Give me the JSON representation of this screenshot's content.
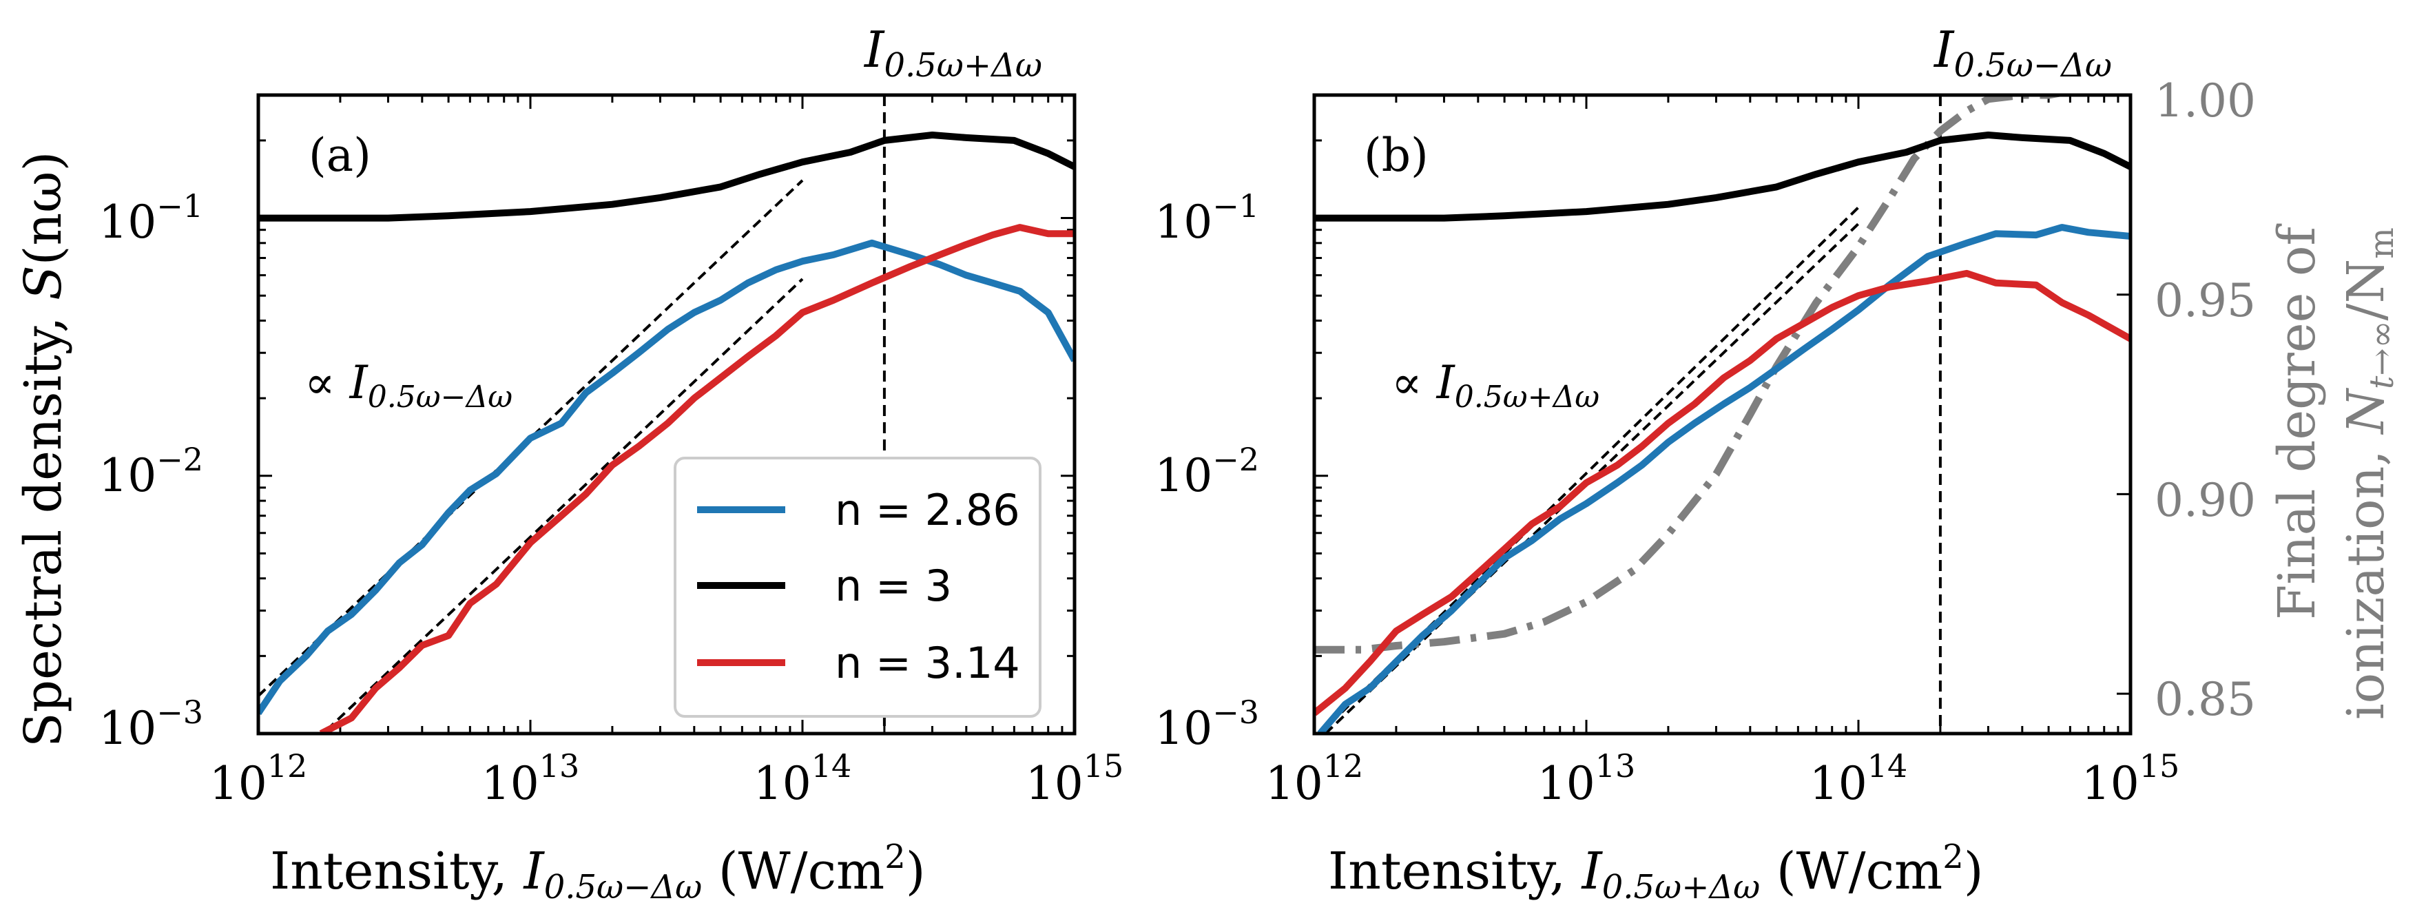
{
  "chart_data": [
    {
      "type": "line",
      "panel_label": "(a)",
      "xscale": "log",
      "yscale": "log",
      "xlim": [
        1000000000000.0,
        1000000000000000.0
      ],
      "ylim": [
        0.001,
        0.3
      ],
      "x_ticks": [
        "10",
        "10",
        "10",
        "10"
      ],
      "x_tick_exponents": [
        "12",
        "13",
        "14",
        "15"
      ],
      "y_ticks": [
        "10",
        "10",
        "10"
      ],
      "y_tick_exponents": [
        "−3",
        "−2",
        "−1"
      ],
      "xlabel": {
        "prefix": "Intensity, ",
        "var": "I",
        "sub": "0.5ω−Δω",
        "unit_open": " (W/cm",
        "unit_sup": "2",
        "unit_close": ")"
      },
      "ylabel": {
        "prefix": "Spectral density, ",
        "var": "S",
        "arg": "(nω)"
      },
      "top_annotation": {
        "var": "I",
        "sub": "0.5ω+Δω"
      },
      "vline_x": 200000000000000.0,
      "scaling_note": {
        "prefix": "∝ ",
        "var": "I",
        "sub": "0.5ω−Δω"
      },
      "reference_lines": [
        {
          "x": [
            1000000000000.0,
            100000000000000.0
          ],
          "y": [
            0.0014,
            0.14
          ]
        },
        {
          "x": [
            1350000000000.0,
            100000000000000.0
          ],
          "y": [
            0.00078,
            0.058
          ]
        }
      ],
      "series": [
        {
          "name": "n = 2.86",
          "color": "#1f77b4",
          "x": [
            1000000000000.0,
            1200000000000.0,
            1500000000000.0,
            1800000000000.0,
            2200000000000.0,
            2700000000000.0,
            3300000000000.0,
            4000000000000.0,
            5000000000000.0,
            6000000000000.0,
            7500000000000.0,
            10000000000000.0,
            13000000000000.0,
            16000000000000.0,
            20000000000000.0,
            25000000000000.0,
            32000000000000.0,
            40000000000000.0,
            50000000000000.0,
            63000000000000.0,
            80000000000000.0,
            100000000000000.0,
            130000000000000.0,
            180000000000000.0,
            250000000000000.0,
            320000000000000.0,
            400000000000000.0,
            500000000000000.0,
            630000000000000.0,
            800000000000000.0,
            1000000000000000.0
          ],
          "y": [
            0.0012,
            0.0016,
            0.002,
            0.0025,
            0.0029,
            0.0036,
            0.0046,
            0.0054,
            0.0072,
            0.0088,
            0.0102,
            0.014,
            0.016,
            0.021,
            0.025,
            0.03,
            0.037,
            0.043,
            0.048,
            0.056,
            0.063,
            0.068,
            0.072,
            0.08,
            0.072,
            0.066,
            0.06,
            0.056,
            0.052,
            0.043,
            0.028
          ]
        },
        {
          "name": "n = 3",
          "color": "#000000",
          "x": [
            1000000000000.0,
            1500000000000.0,
            2000000000000.0,
            3000000000000.0,
            5000000000000.0,
            7000000000000.0,
            10000000000000.0,
            20000000000000.0,
            30000000000000.0,
            50000000000000.0,
            70000000000000.0,
            100000000000000.0,
            150000000000000.0,
            200000000000000.0,
            300000000000000.0,
            400000000000000.0,
            600000000000000.0,
            800000000000000.0,
            1000000000000000.0
          ],
          "y": [
            0.1,
            0.1,
            0.1,
            0.1,
            0.102,
            0.104,
            0.106,
            0.113,
            0.12,
            0.132,
            0.148,
            0.165,
            0.18,
            0.2,
            0.21,
            0.205,
            0.2,
            0.178,
            0.158
          ]
        },
        {
          "name": "n = 3.14",
          "color": "#d62728",
          "x": [
            1700000000000.0,
            2200000000000.0,
            2700000000000.0,
            3300000000000.0,
            4000000000000.0,
            5000000000000.0,
            6000000000000.0,
            7500000000000.0,
            10000000000000.0,
            13000000000000.0,
            16000000000000.0,
            20000000000000.0,
            25000000000000.0,
            32000000000000.0,
            40000000000000.0,
            50000000000000.0,
            63000000000000.0,
            80000000000000.0,
            100000000000000.0,
            130000000000000.0,
            180000000000000.0,
            250000000000000.0,
            320000000000000.0,
            400000000000000.0,
            500000000000000.0,
            630000000000000.0,
            800000000000000.0,
            1000000000000000.0
          ],
          "y": [
            0.001,
            0.00115,
            0.0015,
            0.0018,
            0.0022,
            0.0024,
            0.0032,
            0.0038,
            0.0055,
            0.007,
            0.0085,
            0.011,
            0.013,
            0.016,
            0.02,
            0.024,
            0.029,
            0.035,
            0.043,
            0.048,
            0.056,
            0.065,
            0.072,
            0.079,
            0.086,
            0.092,
            0.087,
            0.087
          ]
        }
      ],
      "legend": {
        "placement": "lower-right",
        "entries": [
          "n = 2.86",
          "n = 3",
          "n = 3.14"
        ]
      }
    },
    {
      "type": "line",
      "panel_label": "(b)",
      "xscale": "log",
      "yscale": "log",
      "xlim": [
        1000000000000.0,
        1000000000000000.0
      ],
      "ylim": [
        0.001,
        0.3
      ],
      "x_ticks": [
        "10",
        "10",
        "10",
        "10"
      ],
      "x_tick_exponents": [
        "12",
        "13",
        "14",
        "15"
      ],
      "xlabel": {
        "prefix": "Intensity, ",
        "var": "I",
        "sub": "0.5ω+Δω",
        "unit_open": " (W/cm",
        "unit_sup": "2",
        "unit_close": ")"
      },
      "top_annotation": {
        "var": "I",
        "sub": "0.5ω−Δω"
      },
      "vline_x": 200000000000000.0,
      "scaling_note": {
        "prefix": "∝ ",
        "var": "I",
        "sub": "0.5ω+Δω"
      },
      "reference_lines": [
        {
          "x": [
            1050000000000.0,
            100000000000000.0
          ],
          "y": [
            0.001,
            0.11
          ]
        },
        {
          "x": [
            1100000000000.0,
            100000000000000.0
          ],
          "y": [
            0.001,
            0.095
          ]
        }
      ],
      "series": [
        {
          "name": "n = 2.86",
          "color": "#1f77b4",
          "x": [
            1050000000000.0,
            1300000000000.0,
            1600000000000.0,
            2000000000000.0,
            2500000000000.0,
            3200000000000.0,
            4000000000000.0,
            5000000000000.0,
            6300000000000.0,
            8000000000000.0,
            10000000000000.0,
            13000000000000.0,
            16000000000000.0,
            20000000000000.0,
            25000000000000.0,
            32000000000000.0,
            40000000000000.0,
            50000000000000.0,
            63000000000000.0,
            80000000000000.0,
            100000000000000.0,
            130000000000000.0,
            180000000000000.0,
            250000000000000.0,
            320000000000000.0,
            450000000000000.0,
            560000000000000.0,
            700000000000000.0,
            1000000000000000.0
          ],
          "y": [
            0.001,
            0.0013,
            0.0015,
            0.0019,
            0.0024,
            0.003,
            0.0038,
            0.0048,
            0.0056,
            0.0068,
            0.0078,
            0.0094,
            0.011,
            0.0135,
            0.016,
            0.019,
            0.022,
            0.026,
            0.031,
            0.037,
            0.044,
            0.055,
            0.071,
            0.08,
            0.087,
            0.086,
            0.092,
            0.088,
            0.085
          ]
        },
        {
          "name": "n = 3",
          "color": "#000000",
          "x": [
            1000000000000.0,
            1500000000000.0,
            2000000000000.0,
            3000000000000.0,
            5000000000000.0,
            7000000000000.0,
            10000000000000.0,
            20000000000000.0,
            30000000000000.0,
            50000000000000.0,
            70000000000000.0,
            100000000000000.0,
            150000000000000.0,
            200000000000000.0,
            300000000000000.0,
            400000000000000.0,
            600000000000000.0,
            800000000000000.0,
            1000000000000000.0
          ],
          "y": [
            0.1,
            0.1,
            0.1,
            0.1,
            0.102,
            0.104,
            0.106,
            0.113,
            0.12,
            0.132,
            0.148,
            0.165,
            0.18,
            0.2,
            0.21,
            0.205,
            0.2,
            0.178,
            0.158
          ]
        },
        {
          "name": "n = 3.14",
          "color": "#d62728",
          "x": [
            1000000000000.0,
            1300000000000.0,
            1600000000000.0,
            2000000000000.0,
            2500000000000.0,
            3200000000000.0,
            4000000000000.0,
            5000000000000.0,
            6300000000000.0,
            8000000000000.0,
            10000000000000.0,
            13000000000000.0,
            16000000000000.0,
            20000000000000.0,
            25000000000000.0,
            32000000000000.0,
            40000000000000.0,
            50000000000000.0,
            63000000000000.0,
            80000000000000.0,
            100000000000000.0,
            130000000000000.0,
            180000000000000.0,
            250000000000000.0,
            320000000000000.0,
            450000000000000.0,
            560000000000000.0,
            700000000000000.0,
            1000000000000000.0
          ],
          "y": [
            0.0012,
            0.0015,
            0.0019,
            0.0025,
            0.0029,
            0.0034,
            0.0042,
            0.0052,
            0.0065,
            0.0076,
            0.0094,
            0.011,
            0.013,
            0.016,
            0.019,
            0.024,
            0.028,
            0.034,
            0.039,
            0.045,
            0.05,
            0.054,
            0.057,
            0.061,
            0.056,
            0.055,
            0.047,
            0.042,
            0.034
          ]
        }
      ],
      "secondary_axis": {
        "label_line1": "Final degree of",
        "label_line2": {
          "prefix": "ionization, ",
          "var": "N",
          "sub": "t→∞",
          "suffix": "/N",
          "sub2": "m"
        },
        "ylim": [
          0.84,
          1.0
        ],
        "y_ticks": [
          "0.85",
          "0.90",
          "0.95",
          "1.00"
        ],
        "y_tick_values": [
          0.85,
          0.9,
          0.95,
          1.0
        ],
        "series": {
          "name": "Final degree of ionization",
          "color": "#7f7f7f",
          "style": "dash-dot",
          "x": [
            1000000000000.0,
            1500000000000.0,
            2000000000000.0,
            3000000000000.0,
            5000000000000.0,
            7000000000000.0,
            10000000000000.0,
            15000000000000.0,
            20000000000000.0,
            30000000000000.0,
            40000000000000.0,
            50000000000000.0,
            70000000000000.0,
            100000000000000.0,
            130000000000000.0,
            160000000000000.0,
            200000000000000.0,
            250000000000000.0,
            300000000000000.0,
            400000000000000.0,
            500000000000000.0,
            600000000000000.0,
            800000000000000.0,
            1000000000000000.0
          ],
          "y": [
            0.861,
            0.861,
            0.862,
            0.863,
            0.865,
            0.868,
            0.873,
            0.881,
            0.89,
            0.905,
            0.92,
            0.932,
            0.948,
            0.962,
            0.974,
            0.984,
            0.991,
            0.996,
            0.999,
            1.0,
            1.0,
            1.001,
            1.001,
            1.001
          ]
        }
      }
    }
  ],
  "legend_labels": [
    "n = 2.86",
    "n = 3",
    "n = 3.14"
  ]
}
